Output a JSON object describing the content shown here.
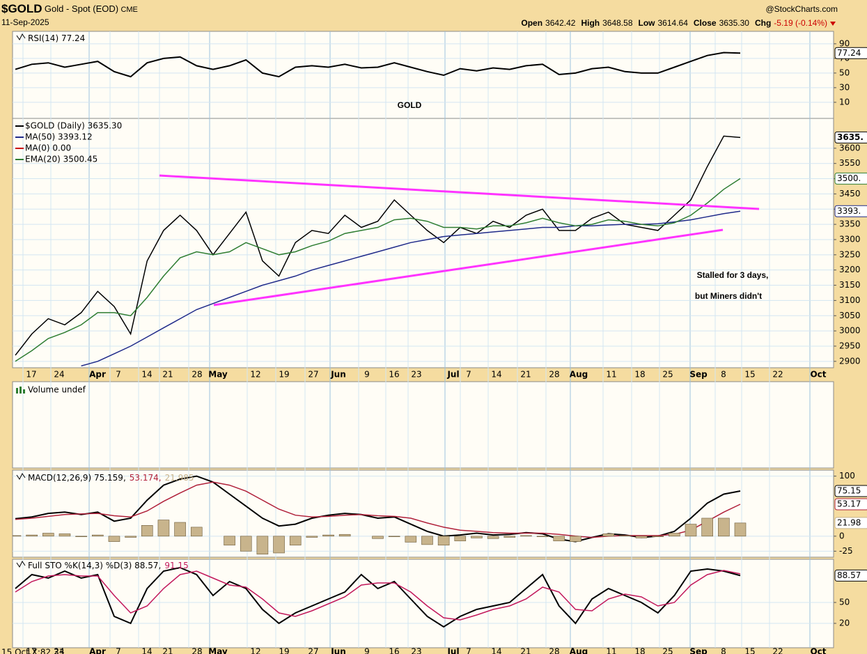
{
  "header": {
    "symbol": "$GOLD",
    "name": "Gold - Spot (EOD)",
    "exchange": "CME",
    "date": "11-Sep-2025",
    "source": "@StockCharts.com",
    "quote": [
      {
        "label": "Open",
        "value": "3642.42"
      },
      {
        "label": "High",
        "value": "3648.58"
      },
      {
        "label": "Low",
        "value": "3614.64"
      },
      {
        "label": "Close",
        "value": "3635.30"
      }
    ],
    "chg_label": "Chg",
    "chg": "-5.19 (-0.14%)"
  },
  "x_labels": [
    "17",
    "24",
    "Apr",
    "7",
    "14",
    "21",
    "28",
    "May",
    "12",
    "19",
    "27",
    "Jun",
    "9",
    "16",
    "23",
    "Jul",
    "7",
    "14",
    "21",
    "28",
    "Aug",
    "11",
    "18",
    "25",
    "Sep",
    "8",
    "15",
    "22",
    "Oct"
  ],
  "chart_data": [
    {
      "type": "line",
      "ylim": [
        -12,
        107
      ],
      "yticks": [
        90,
        70,
        50,
        30,
        10
      ],
      "grid": true,
      "series": [
        {
          "name": "RSI(14) 77.24",
          "color": "#000000",
          "end_label": "77.24",
          "values": [
            55,
            62,
            64,
            58,
            62,
            66,
            52,
            45,
            64,
            70,
            72,
            60,
            55,
            60,
            68,
            50,
            45,
            58,
            60,
            58,
            62,
            57,
            58,
            64,
            58,
            52,
            47,
            56,
            53,
            57,
            55,
            60,
            62,
            48,
            50,
            56,
            58,
            52,
            50,
            50,
            58,
            66,
            74,
            78,
            77.24
          ]
        }
      ]
    },
    {
      "type": "line",
      "ylim": [
        2879,
        3698
      ],
      "yticks": [
        2900,
        2950,
        3000,
        3050,
        3100,
        3150,
        3200,
        3250,
        3300,
        3350,
        3400,
        3450,
        3500,
        3550,
        3600
      ],
      "grid": true,
      "series": [
        {
          "name": "$GOLD (Daily) 3635.30",
          "color": "#000000",
          "end_label": "3635.",
          "values": [
            2920,
            2990,
            3040,
            3020,
            3060,
            3130,
            3080,
            2990,
            3230,
            3330,
            3380,
            3330,
            3250,
            3320,
            3390,
            3230,
            3180,
            3290,
            3330,
            3320,
            3380,
            3340,
            3360,
            3430,
            3380,
            3330,
            3290,
            3340,
            3320,
            3360,
            3340,
            3380,
            3400,
            3330,
            3330,
            3370,
            3390,
            3350,
            3340,
            3330,
            3380,
            3430,
            3540,
            3640,
            3635.3
          ]
        },
        {
          "name": "MA(50) 3393.12",
          "color": "#1f2a8a",
          "end_label": "3393.",
          "values": [
            null,
            null,
            null,
            null,
            2885,
            2900,
            2925,
            2950,
            2980,
            3010,
            3040,
            3070,
            3090,
            3110,
            3130,
            3150,
            3165,
            3180,
            3200,
            3215,
            3230,
            3245,
            3260,
            3275,
            3290,
            3300,
            3310,
            3315,
            3320,
            3325,
            3330,
            3335,
            3340,
            3340,
            3345,
            3345,
            3348,
            3350,
            3350,
            3352,
            3358,
            3365,
            3375,
            3385,
            3393.12
          ]
        },
        {
          "name": "MA(0) 0.00",
          "color": "#cc0000",
          "values": [
            null,
            null,
            null,
            null,
            null,
            null,
            null,
            null,
            null,
            null,
            null,
            null,
            null,
            null,
            null,
            null,
            null,
            null,
            null,
            null,
            null,
            null,
            null,
            null,
            null,
            null,
            null,
            null,
            null,
            null,
            null,
            null,
            null,
            null,
            null,
            null,
            null,
            null,
            null,
            null,
            null,
            null,
            null,
            null,
            null
          ]
        },
        {
          "name": "EMA(20) 3500.45",
          "color": "#2e7d32",
          "end_label": "3500.",
          "values": [
            2900,
            2935,
            2975,
            2995,
            3020,
            3060,
            3060,
            3050,
            3110,
            3180,
            3240,
            3260,
            3250,
            3260,
            3290,
            3270,
            3250,
            3260,
            3280,
            3295,
            3320,
            3330,
            3340,
            3365,
            3370,
            3360,
            3340,
            3340,
            3335,
            3345,
            3345,
            3355,
            3370,
            3355,
            3345,
            3350,
            3365,
            3360,
            3350,
            3345,
            3355,
            3380,
            3420,
            3465,
            3500.45
          ]
        }
      ]
    },
    {
      "type": "volume",
      "title": "Volume undef"
    },
    {
      "type": "line",
      "ylim": [
        -35,
        110
      ],
      "yticks": [
        100,
        0,
        -25
      ],
      "grid": true,
      "series": [
        {
          "name": "MACD(12,26,9) 75.159,",
          "color": "#000000",
          "end_label": "75.15",
          "values": [
            29,
            32,
            38,
            40,
            36,
            40,
            25,
            30,
            60,
            85,
            95,
            100,
            90,
            70,
            50,
            30,
            17,
            20,
            30,
            35,
            38,
            36,
            30,
            32,
            20,
            8,
            0,
            2,
            5,
            2,
            3,
            6,
            4,
            -5,
            -9,
            -2,
            4,
            2,
            -2,
            0,
            8,
            30,
            55,
            70,
            75.159
          ]
        },
        {
          "name": "53.174,",
          "color": "#b0203a",
          "end_label": "53.17",
          "values": [
            28,
            30,
            33,
            36,
            37,
            38,
            34,
            32,
            42,
            58,
            72,
            85,
            90,
            85,
            75,
            60,
            45,
            35,
            32,
            33,
            35,
            36,
            34,
            33,
            30,
            22,
            15,
            10,
            8,
            6,
            5,
            5,
            5,
            3,
            0,
            -2,
            0,
            1,
            1,
            1,
            3,
            10,
            25,
            40,
            53.174
          ]
        },
        {
          "name": "21.985",
          "color": "#c8b48c",
          "type": "bar",
          "end_label": "21.98",
          "values": [
            1,
            2,
            5,
            4,
            -1,
            2,
            -9,
            -2,
            18,
            27,
            23,
            15,
            0,
            -15,
            -25,
            -30,
            -28,
            -15,
            -2,
            2,
            3,
            0,
            -4,
            -1,
            -10,
            -14,
            -15,
            -8,
            -3,
            -4,
            -2,
            1,
            -1,
            -8,
            -9,
            0,
            4,
            1,
            -3,
            -1,
            5,
            20,
            30,
            30,
            21.985
          ]
        }
      ]
    },
    {
      "type": "line",
      "ylim": [
        -15,
        112
      ],
      "yticks": [
        50,
        20
      ],
      "grid": true,
      "series": [
        {
          "name": "Full STO %K(14,3) %D(3) 88.57,",
          "color": "#000000",
          "end_label": "88.57",
          "values": [
            70,
            90,
            85,
            95,
            85,
            90,
            30,
            20,
            70,
            95,
            100,
            90,
            60,
            80,
            70,
            40,
            20,
            35,
            45,
            55,
            65,
            90,
            70,
            80,
            55,
            30,
            15,
            30,
            40,
            45,
            50,
            70,
            90,
            45,
            20,
            55,
            70,
            60,
            50,
            35,
            60,
            95,
            98,
            95,
            88.57
          ]
        },
        {
          "name": "91.15",
          "color": "#c2185b",
          "values": [
            65,
            80,
            88,
            90,
            88,
            88,
            60,
            35,
            45,
            70,
            90,
            95,
            85,
            75,
            72,
            55,
            35,
            30,
            38,
            48,
            58,
            75,
            78,
            78,
            65,
            45,
            28,
            25,
            32,
            40,
            45,
            55,
            72,
            65,
            40,
            38,
            55,
            62,
            58,
            45,
            50,
            75,
            90,
            96,
            91.15
          ]
        }
      ]
    }
  ],
  "annotations": [
    "GOLD",
    "Stalled for 3 days,",
    "but Miners didn't"
  ],
  "footer": "15 Oct X:82.33"
}
